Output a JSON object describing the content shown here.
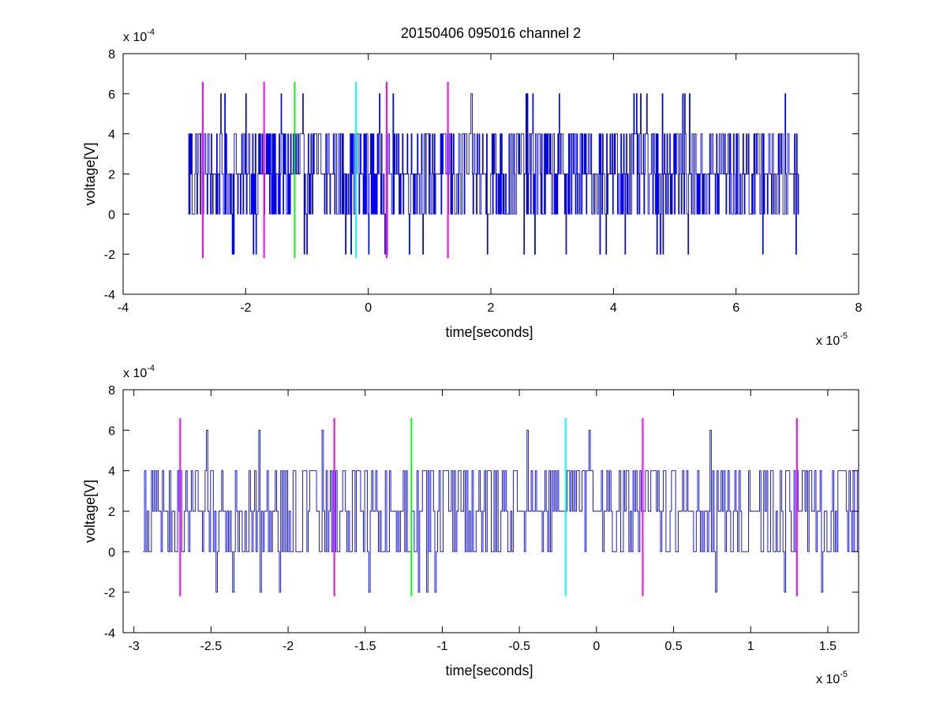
{
  "chart_data": [
    {
      "type": "line",
      "title": "20150406 095016 channel 2",
      "xlabel": "time[seconds]",
      "ylabel": "voltage[V]",
      "x_multiplier": "x 10",
      "x_exponent": "-5",
      "y_multiplier": "x 10",
      "y_exponent": "-4",
      "xlim": [
        -4,
        8
      ],
      "ylim": [
        -4,
        8
      ],
      "xticks": [
        "-4",
        "-2",
        "0",
        "2",
        "4",
        "6",
        "8"
      ],
      "yticks": [
        "-4",
        "-2",
        "0",
        "2",
        "4",
        "6",
        "8"
      ],
      "grid": false,
      "series": [
        {
          "color": "#0000ff",
          "x_start": -2.94,
          "x_end": 7.02,
          "y_min": -2,
          "y_max": 6,
          "y_levels": [
            -2,
            0,
            2,
            4,
            6
          ]
        }
      ],
      "markers": [
        {
          "x": -2.7,
          "y_from": -2.2,
          "y_to": 6.6,
          "color": "#ff00ff"
        },
        {
          "x": -1.7,
          "y_from": -2.2,
          "y_to": 6.6,
          "color": "#ff00ff"
        },
        {
          "x": -1.2,
          "y_from": -2.2,
          "y_to": 6.6,
          "color": "#00ff00"
        },
        {
          "x": -0.2,
          "y_from": -2.2,
          "y_to": 6.6,
          "color": "#00ffff"
        },
        {
          "x": 0.3,
          "y_from": -2.2,
          "y_to": 6.6,
          "color": "#ff00ff"
        },
        {
          "x": 1.3,
          "y_from": -2.2,
          "y_to": 6.6,
          "color": "#ff00ff"
        }
      ]
    },
    {
      "type": "line",
      "xlabel": "time[seconds]",
      "ylabel": "voltage[V]",
      "x_multiplier": "x 10",
      "x_exponent": "-5",
      "y_multiplier": "x 10",
      "y_exponent": "-4",
      "xlim": [
        -3.07,
        1.7
      ],
      "ylim": [
        -4,
        8
      ],
      "xticks": [
        "-3",
        "-2.5",
        "-2",
        "-1.5",
        "-1",
        "-0.5",
        "0",
        "0.5",
        "1",
        "1.5"
      ],
      "yticks": [
        "-4",
        "-2",
        "0",
        "2",
        "4",
        "6",
        "8"
      ],
      "grid": false,
      "series": [
        {
          "color": "#0000ff",
          "x_start": -2.94,
          "x_end": 1.7,
          "y_min": -2,
          "y_max": 6,
          "y_levels": [
            -2,
            0,
            2,
            4,
            6
          ]
        }
      ],
      "markers": [
        {
          "x": -2.7,
          "y_from": -2.2,
          "y_to": 6.6,
          "color": "#ff00ff"
        },
        {
          "x": -1.7,
          "y_from": -2.2,
          "y_to": 6.6,
          "color": "#ff00ff"
        },
        {
          "x": -1.2,
          "y_from": -2.2,
          "y_to": 6.6,
          "color": "#00ff00"
        },
        {
          "x": -0.2,
          "y_from": -2.2,
          "y_to": 6.6,
          "color": "#00ffff"
        },
        {
          "x": 0.3,
          "y_from": -2.2,
          "y_to": 6.6,
          "color": "#ff00ff"
        },
        {
          "x": 1.3,
          "y_from": -2.2,
          "y_to": 6.6,
          "color": "#ff00ff"
        }
      ]
    }
  ]
}
